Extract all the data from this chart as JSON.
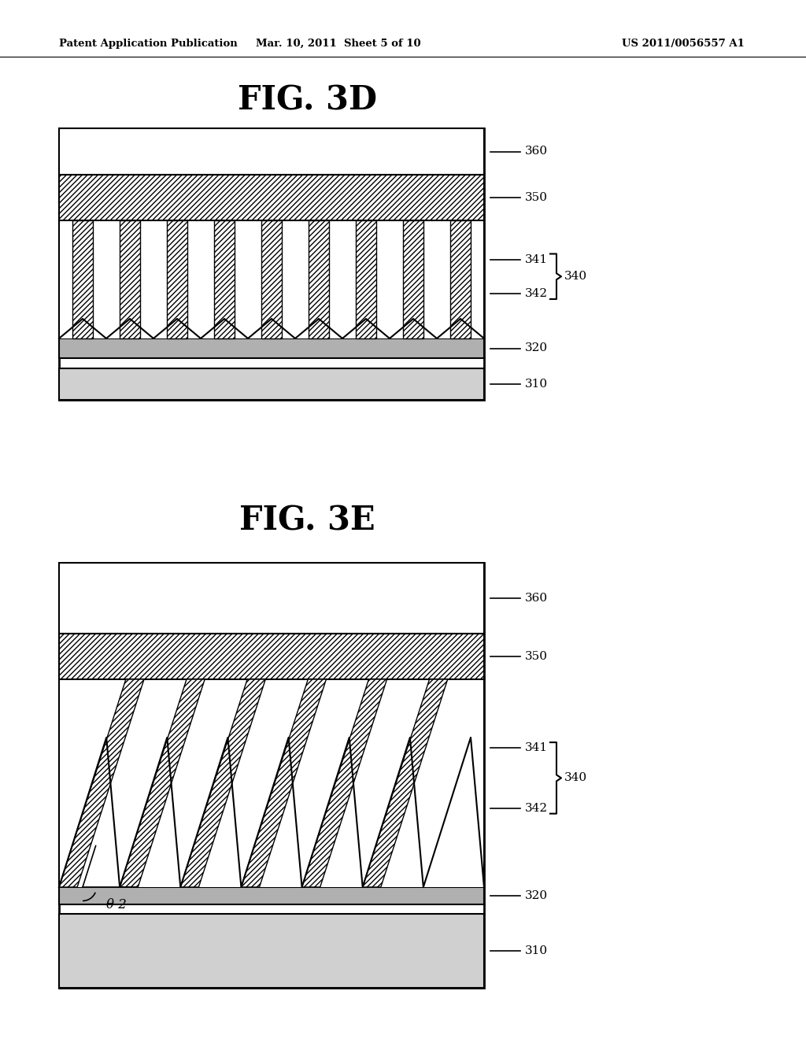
{
  "header_left": "Patent Application Publication",
  "header_mid": "Mar. 10, 2011  Sheet 5 of 10",
  "header_right": "US 2011/0056557 A1",
  "fig1_title": "FIG. 3D",
  "fig2_title": "FIG. 3E",
  "background": "#ffffff",
  "line_color": "#000000",
  "theta_label": "θ 2"
}
